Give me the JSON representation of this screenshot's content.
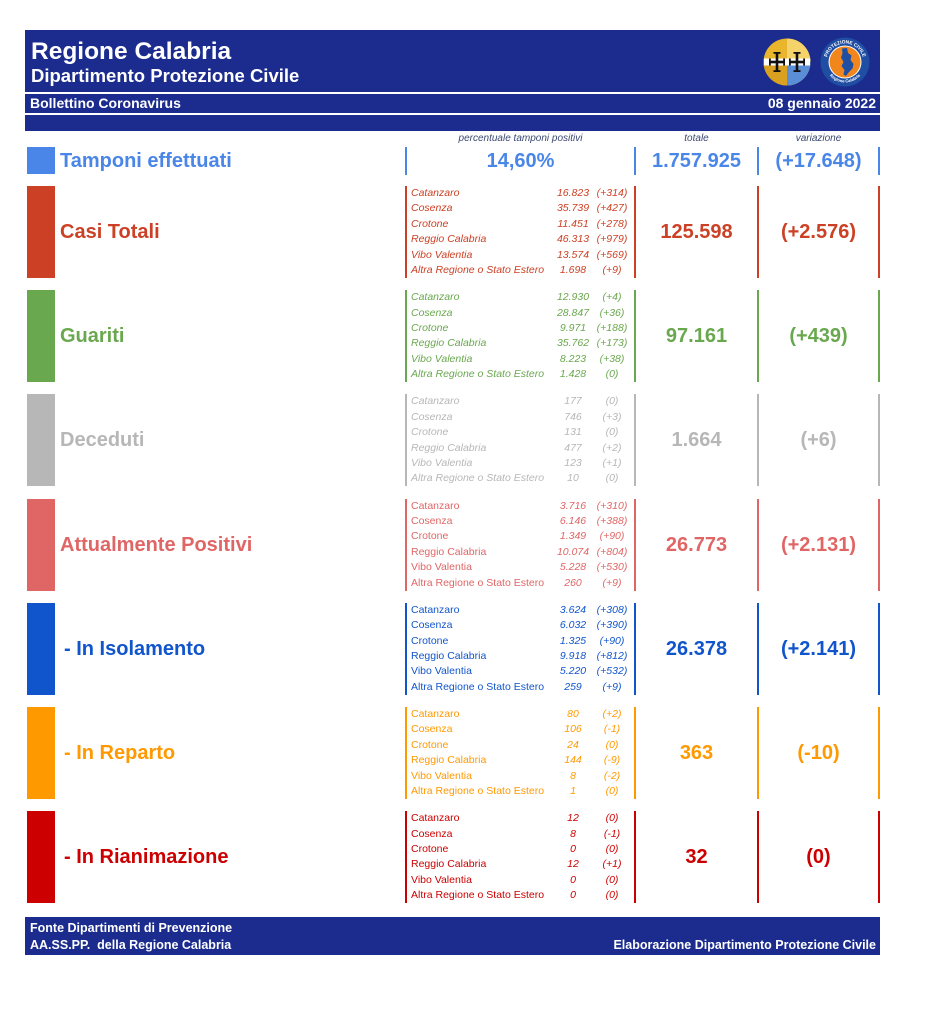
{
  "theme": {
    "band": "#1b2c8e"
  },
  "header": {
    "title": "Regione Calabria",
    "subtitle": "Dipartimento Protezione Civile",
    "bulletin_label": "Bollettino Coronavirus",
    "date": "08 gennaio 2022",
    "logos": {
      "region_emblem": {
        "icon": "calabria-emblem-icon"
      },
      "civil_protection": {
        "icon": "civil-protection-logo-icon",
        "text_top": "PROTEZIONE CIVILE",
        "text_bottom": "Regione Calabria"
      }
    }
  },
  "columns": {
    "percent_positive": "percentuale tamponi positivi",
    "total": "totale",
    "change": "variazione"
  },
  "swabs": {
    "label": "Tamponi effettuati",
    "percent_positive": "14,60%",
    "total": "1.757.925",
    "change": "(+17.648)",
    "color": "#4a86e8"
  },
  "categories": [
    {
      "label": "Casi Totali",
      "color": "#cc4125",
      "total": "125.598",
      "change": "(+2.576)",
      "provinces": [
        {
          "name": "Catanzaro",
          "value": "16.823",
          "change": "(+314)"
        },
        {
          "name": "Cosenza",
          "value": "35.739",
          "change": "(+427)"
        },
        {
          "name": "Crotone",
          "value": "11.451",
          "change": "(+278)"
        },
        {
          "name": "Reggio Calabria",
          "value": "46.313",
          "change": "(+979)"
        },
        {
          "name": "Vibo Valentia",
          "value": "13.574",
          "change": "(+569)"
        },
        {
          "name": "Altra Regione o Stato Estero",
          "value": "1.698",
          "change": "(+9)"
        }
      ]
    },
    {
      "label": "Guariti",
      "color": "#6aa84f",
      "total": "97.161",
      "change": "(+439)",
      "provinces": [
        {
          "name": "Catanzaro",
          "value": "12.930",
          "change": "(+4)"
        },
        {
          "name": "Cosenza",
          "value": "28.847",
          "change": "(+36)"
        },
        {
          "name": "Crotone",
          "value": "9.971",
          "change": "(+188)"
        },
        {
          "name": "Reggio Calabria",
          "value": "35.762",
          "change": "(+173)"
        },
        {
          "name": "Vibo Valentia",
          "value": "8.223",
          "change": "(+38)"
        },
        {
          "name": "Altra Regione o Stato Estero",
          "value": "1.428",
          "change": "(0)"
        }
      ]
    },
    {
      "label": "Deceduti",
      "color": "#b7b7b7",
      "total": "1.664",
      "change": "(+6)",
      "provinces": [
        {
          "name": "Catanzaro",
          "value": "177",
          "change": "(0)"
        },
        {
          "name": "Cosenza",
          "value": "746",
          "change": "(+3)"
        },
        {
          "name": "Crotone",
          "value": "131",
          "change": "(0)"
        },
        {
          "name": "Reggio Calabria",
          "value": "477",
          "change": "(+2)"
        },
        {
          "name": "Vibo Valentia",
          "value": "123",
          "change": "(+1)"
        },
        {
          "name": "Altra Regione o Stato Estero",
          "value": "10",
          "change": "(0)"
        }
      ]
    },
    {
      "label": "Attualmente Positivi",
      "color": "#e06666",
      "total": "26.773",
      "change": "(+2.131)",
      "provinces": [
        {
          "name": "Catanzaro",
          "value": "3.716",
          "change": "(+310)"
        },
        {
          "name": "Cosenza",
          "value": "6.146",
          "change": "(+388)"
        },
        {
          "name": "Crotone",
          "value": "1.349",
          "change": "(+90)"
        },
        {
          "name": "Reggio Calabria",
          "value": "10.074",
          "change": "(+804)"
        },
        {
          "name": "Vibo Valentia",
          "value": "5.228",
          "change": "(+530)"
        },
        {
          "name": "Altra Regione o Stato Estero",
          "value": "260",
          "change": "(+9)"
        }
      ]
    },
    {
      "label": "- In Isolamento",
      "color": "#1155cc",
      "total": "26.378",
      "change": "(+2.141)",
      "provinces": [
        {
          "name": "Catanzaro",
          "value": "3.624",
          "change": "(+308)"
        },
        {
          "name": "Cosenza",
          "value": "6.032",
          "change": "(+390)"
        },
        {
          "name": "Crotone",
          "value": "1.325",
          "change": "(+90)"
        },
        {
          "name": "Reggio Calabria",
          "value": "9.918",
          "change": "(+812)"
        },
        {
          "name": "Vibo Valentia",
          "value": "5.220",
          "change": "(+532)"
        },
        {
          "name": "Altra Regione o Stato Estero",
          "value": "259",
          "change": "(+9)"
        }
      ]
    },
    {
      "label": "- In Reparto",
      "color": "#ff9900",
      "total": "363",
      "change": "(-10)",
      "provinces": [
        {
          "name": "Catanzaro",
          "value": "80",
          "change": "(+2)"
        },
        {
          "name": "Cosenza",
          "value": "106",
          "change": "(-1)"
        },
        {
          "name": "Crotone",
          "value": "24",
          "change": "(0)"
        },
        {
          "name": "Reggio Calabria",
          "value": "144",
          "change": "(-9)"
        },
        {
          "name": "Vibo Valentia",
          "value": "8",
          "change": "(-2)"
        },
        {
          "name": "Altra Regione o Stato Estero",
          "value": "1",
          "change": "(0)"
        }
      ]
    },
    {
      "label": "- In Rianimazione",
      "color": "#cc0000",
      "total": "32",
      "change": "(0)",
      "provinces": [
        {
          "name": "Catanzaro",
          "value": "12",
          "change": "(0)"
        },
        {
          "name": "Cosenza",
          "value": "8",
          "change": "(-1)"
        },
        {
          "name": "Crotone",
          "value": "0",
          "change": "(0)"
        },
        {
          "name": "Reggio Calabria",
          "value": "12",
          "change": "(+1)"
        },
        {
          "name": "Vibo Valentia",
          "value": "0",
          "change": "(0)"
        },
        {
          "name": "Altra Regione o Stato Estero",
          "value": "0",
          "change": "(0)"
        }
      ]
    }
  ],
  "footer": {
    "source_line1": "Fonte Dipartimenti di Prevenzione",
    "source_line2": "AA.SS.PP.  della Regione Calabria",
    "credit": "Elaborazione Dipartimento Protezione Civile"
  }
}
